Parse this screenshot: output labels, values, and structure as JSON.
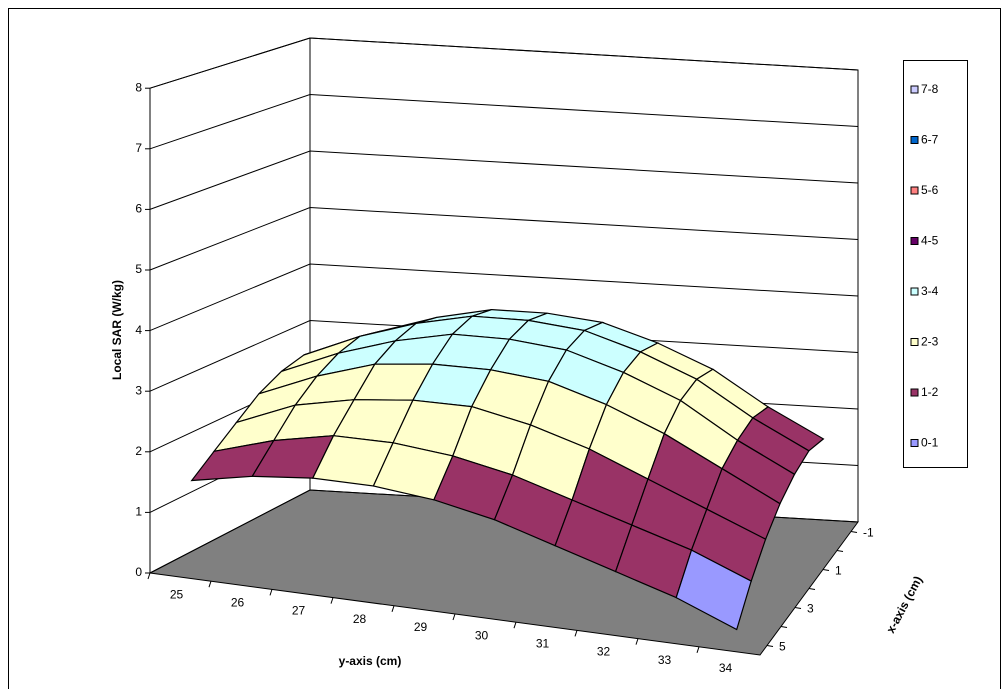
{
  "chart_data": {
    "type": "surface",
    "z_label": "Local SAR (W/kg)",
    "category_label": "y-axis (cm)",
    "depth_label": "x-axis (cm)",
    "categories": [
      25,
      26,
      27,
      28,
      29,
      30,
      31,
      32,
      33,
      34
    ],
    "depth_categories": [
      -1,
      null,
      1,
      null,
      3,
      null,
      5
    ],
    "values": [
      [
        2.6,
        3.0,
        3.3,
        3.5,
        3.5,
        3.4,
        3.1,
        2.7,
        2.1,
        1.6
      ],
      [
        2.7,
        3.1,
        3.4,
        3.6,
        3.6,
        3.5,
        3.2,
        2.8,
        2.2,
        1.7
      ],
      [
        2.6,
        3.0,
        3.3,
        3.5,
        3.5,
        3.4,
        3.1,
        2.7,
        2.1,
        1.6
      ],
      [
        2.4,
        2.8,
        3.1,
        3.2,
        3.2,
        3.1,
        2.8,
        2.4,
        1.9,
        1.4
      ],
      [
        2.1,
        2.5,
        2.7,
        2.8,
        2.8,
        2.6,
        2.3,
        1.9,
        1.5,
        1.1
      ],
      [
        1.8,
        2.1,
        2.3,
        2.3,
        2.2,
        2.0,
        1.7,
        1.4,
        1.1,
        0.7
      ],
      [
        1.5,
        1.7,
        1.8,
        1.8,
        1.7,
        1.5,
        1.2,
        0.9,
        0.6,
        0.2
      ]
    ],
    "zlim": [
      0,
      8
    ],
    "zticks": [
      0,
      1,
      2,
      3,
      4,
      5,
      6,
      7,
      8
    ],
    "legend": [
      {
        "name": "0-1",
        "color": "#9999ff"
      },
      {
        "name": "1-2",
        "color": "#993366"
      },
      {
        "name": "2-3",
        "color": "#ffffcc"
      },
      {
        "name": "3-4",
        "color": "#ccffff"
      },
      {
        "name": "4-5",
        "color": "#660066"
      },
      {
        "name": "5-6",
        "color": "#ff8080"
      },
      {
        "name": "6-7",
        "color": "#0066cc"
      },
      {
        "name": "7-8",
        "color": "#ccccff"
      }
    ],
    "floor_color": "#808080"
  }
}
